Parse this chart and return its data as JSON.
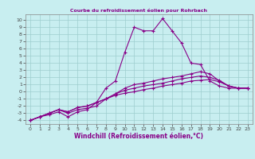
{
  "title": "Courbe du refroidissement éolien pour Rohrbach",
  "xlabel": "Windchill (Refroidissement éolien,°C)",
  "bg_color": "#c8eef0",
  "line_color": "#880088",
  "grid_color": "#9ecece",
  "xlim": [
    -0.5,
    23.5
  ],
  "ylim": [
    -4.5,
    10.8
  ],
  "ytick_vals": [
    10,
    9,
    8,
    7,
    6,
    5,
    4,
    3,
    2,
    1,
    0,
    -1,
    -2,
    -3,
    -4
  ],
  "xtick_vals": [
    0,
    1,
    2,
    3,
    4,
    5,
    6,
    7,
    8,
    9,
    10,
    11,
    12,
    13,
    14,
    15,
    16,
    17,
    18,
    19,
    20,
    21,
    22,
    23
  ],
  "series": [
    {
      "x": [
        0,
        1,
        2,
        3,
        4,
        5,
        6,
        7,
        8,
        9,
        10,
        11,
        12,
        13,
        14,
        15,
        16,
        17,
        18,
        19,
        20,
        21,
        22,
        23
      ],
      "y": [
        -4.0,
        -3.5,
        -3.2,
        -2.8,
        -3.5,
        -2.8,
        -2.5,
        -1.5,
        0.5,
        1.5,
        5.5,
        9.0,
        8.5,
        8.5,
        10.2,
        8.5,
        6.8,
        4.0,
        3.8,
        1.5,
        0.8,
        0.5,
        0.5,
        0.5
      ]
    },
    {
      "x": [
        0,
        1,
        2,
        3,
        4,
        5,
        6,
        7,
        8,
        9,
        10,
        11,
        12,
        13,
        14,
        15,
        16,
        17,
        18,
        19,
        20,
        21,
        22,
        23
      ],
      "y": [
        -4.0,
        -3.5,
        -3.0,
        -2.5,
        -2.8,
        -2.2,
        -2.0,
        -1.5,
        -1.0,
        -0.5,
        -0.2,
        0.0,
        0.3,
        0.5,
        0.8,
        1.0,
        1.2,
        1.5,
        1.6,
        1.7,
        1.4,
        0.8,
        0.5,
        0.5
      ]
    },
    {
      "x": [
        0,
        1,
        2,
        3,
        4,
        5,
        6,
        7,
        8,
        9,
        10,
        11,
        12,
        13,
        14,
        15,
        16,
        17,
        18,
        19,
        20,
        21,
        22,
        23
      ],
      "y": [
        -4.0,
        -3.5,
        -3.0,
        -2.5,
        -2.8,
        -2.2,
        -2.0,
        -1.5,
        -1.0,
        -0.3,
        0.2,
        0.5,
        0.8,
        1.0,
        1.2,
        1.5,
        1.8,
        2.0,
        2.2,
        2.0,
        1.6,
        0.8,
        0.5,
        0.5
      ]
    },
    {
      "x": [
        0,
        1,
        2,
        3,
        4,
        5,
        6,
        7,
        8,
        9,
        10,
        11,
        12,
        13,
        14,
        15,
        16,
        17,
        18,
        19,
        20,
        21,
        22,
        23
      ],
      "y": [
        -4.0,
        -3.5,
        -3.0,
        -2.5,
        -3.0,
        -2.5,
        -2.3,
        -2.0,
        -1.0,
        -0.3,
        0.5,
        1.0,
        1.2,
        1.5,
        1.8,
        2.0,
        2.2,
        2.5,
        2.8,
        2.5,
        1.5,
        0.8,
        0.5,
        0.5
      ]
    }
  ],
  "title_fontsize": 4.5,
  "xlabel_fontsize": 5.5,
  "tick_fontsize": 4.5
}
